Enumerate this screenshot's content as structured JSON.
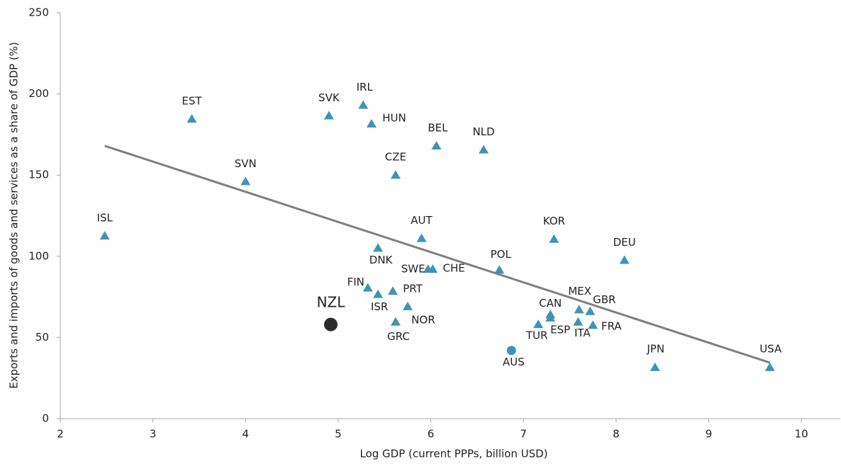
{
  "chart_data": {
    "type": "scatter",
    "x_label": "Log GDP (current PPPs, billion USD)",
    "y_label": "Exports and imports of goods and services as a share of GDP (%)",
    "xlim": [
      2,
      10.42
    ],
    "ylim": [
      0,
      250
    ],
    "xticks": [
      2,
      3,
      4,
      5,
      6,
      7,
      8,
      9,
      10
    ],
    "yticks": [
      0,
      50,
      100,
      150,
      200,
      250
    ],
    "grid": false,
    "points": [
      {
        "label": "ISL",
        "x": 2.48,
        "y": 112.5,
        "marker": "triangle",
        "color": "#3e94b4"
      },
      {
        "label": "EST",
        "x": 3.42,
        "y": 184.5,
        "marker": "triangle",
        "color": "#3e94b4"
      },
      {
        "label": "SVN",
        "x": 4.0,
        "y": 146,
        "marker": "triangle",
        "color": "#3e94b4"
      },
      {
        "label": "SVK",
        "x": 4.9,
        "y": 186.5,
        "marker": "triangle",
        "color": "#3e94b4"
      },
      {
        "label": "IRL",
        "x": 5.27,
        "y": 193,
        "marker": "triangle",
        "color": "#3e94b4"
      },
      {
        "label": "HUN",
        "x": 5.36,
        "y": 181.5,
        "marker": "triangle",
        "color": "#3e94b4"
      },
      {
        "label": "BEL",
        "x": 6.06,
        "y": 168,
        "marker": "triangle",
        "color": "#3e94b4"
      },
      {
        "label": "NLD",
        "x": 6.57,
        "y": 165.5,
        "marker": "triangle",
        "color": "#3e94b4"
      },
      {
        "label": "CZE",
        "x": 5.62,
        "y": 150,
        "marker": "triangle",
        "color": "#3e94b4"
      },
      {
        "label": "AUT",
        "x": 5.9,
        "y": 111,
        "marker": "triangle",
        "color": "#3e94b4"
      },
      {
        "label": "KOR",
        "x": 7.33,
        "y": 110.5,
        "marker": "triangle",
        "color": "#3e94b4"
      },
      {
        "label": "DEU",
        "x": 8.09,
        "y": 97.5,
        "marker": "triangle",
        "color": "#3e94b4"
      },
      {
        "label": "DNK",
        "x": 5.43,
        "y": 105,
        "marker": "triangle",
        "color": "#3e94b4"
      },
      {
        "label": "SWE",
        "x": 5.97,
        "y": 92,
        "marker": "triangle",
        "color": "#3e94b4"
      },
      {
        "label": "CHE",
        "x": 6.02,
        "y": 92,
        "marker": "triangle",
        "color": "#3e94b4"
      },
      {
        "label": "POL",
        "x": 6.74,
        "y": 91.5,
        "marker": "triangle",
        "color": "#3e94b4"
      },
      {
        "label": "FIN",
        "x": 5.32,
        "y": 80.5,
        "marker": "triangle",
        "color": "#3e94b4"
      },
      {
        "label": "ISR",
        "x": 5.43,
        "y": 76.5,
        "marker": "triangle",
        "color": "#3e94b4"
      },
      {
        "label": "PRT",
        "x": 5.59,
        "y": 78.5,
        "marker": "triangle",
        "color": "#3e94b4"
      },
      {
        "label": "NOR",
        "x": 5.75,
        "y": 69,
        "marker": "triangle",
        "color": "#3e94b4"
      },
      {
        "label": "GRC",
        "x": 5.62,
        "y": 59.5,
        "marker": "triangle",
        "color": "#3e94b4"
      },
      {
        "label": "NZL",
        "x": 4.92,
        "y": 58,
        "marker": "circle",
        "color": "#2b2b2b"
      },
      {
        "label": "AUS",
        "x": 6.87,
        "y": 42,
        "marker": "circle",
        "color": "#3e94b4"
      },
      {
        "label": "TUR",
        "x": 7.16,
        "y": 58,
        "marker": "triangle",
        "color": "#3e94b4"
      },
      {
        "label": "CAN",
        "x": 7.29,
        "y": 64,
        "marker": "triangle",
        "color": "#3e94b4"
      },
      {
        "label": "ESP",
        "x": 7.29,
        "y": 62,
        "marker": "triangle",
        "color": "#3e94b4"
      },
      {
        "label": "MEX",
        "x": 7.6,
        "y": 67,
        "marker": "triangle",
        "color": "#3e94b4"
      },
      {
        "label": "ITA",
        "x": 7.59,
        "y": 59.5,
        "marker": "triangle",
        "color": "#3e94b4"
      },
      {
        "label": "GBR",
        "x": 7.72,
        "y": 66,
        "marker": "triangle",
        "color": "#3e94b4"
      },
      {
        "label": "FRA",
        "x": 7.75,
        "y": 57.5,
        "marker": "triangle",
        "color": "#3e94b4"
      },
      {
        "label": "JPN",
        "x": 8.42,
        "y": 31.5,
        "marker": "triangle",
        "color": "#3e94b4"
      },
      {
        "label": "USA",
        "x": 9.66,
        "y": 31.5,
        "marker": "triangle",
        "color": "#3e94b4"
      }
    ],
    "trendline": {
      "x": [
        2.48,
        9.66
      ],
      "y": [
        168,
        34.5
      ],
      "color": "#7f7f7f"
    }
  }
}
